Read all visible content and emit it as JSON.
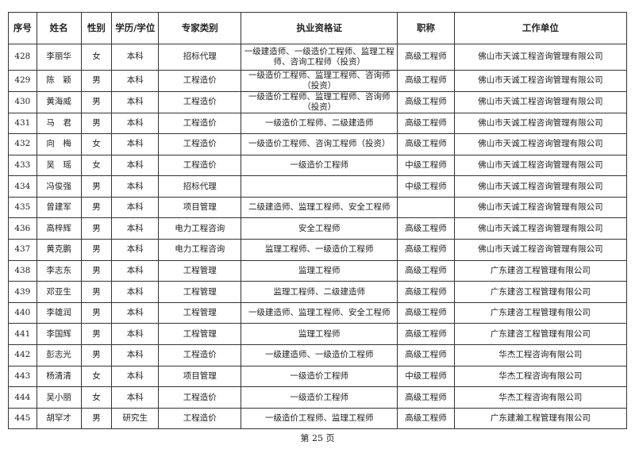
{
  "headers": [
    "序号",
    "姓名",
    "性别",
    "学历/学位",
    "专家类别",
    "执业资格证",
    "职称",
    "工作单位"
  ],
  "rows": [
    [
      "428",
      "李丽华",
      "女",
      "本科",
      "招标代理",
      "一级建造师、一级造价工程师、监理工程师、咨询工程师（投资）",
      "高级工程师",
      "佛山市天诚工程咨询管理有限公司"
    ],
    [
      "429",
      "陈　颖",
      "男",
      "本科",
      "工程造价",
      "一级造价工程师、监理工程师、咨询师（投资）",
      "高级工程师",
      "佛山市天诚工程咨询管理有限公司"
    ],
    [
      "430",
      "黄海威",
      "男",
      "本科",
      "工程造价",
      "一级造价工程师、监理工程师、咨询师（投资）",
      "高级工程师",
      "佛山市天诚工程咨询管理有限公司"
    ],
    [
      "431",
      "马　君",
      "男",
      "本科",
      "工程造价",
      "一级造价工程师、二级建造师",
      "高级工程师",
      "佛山市天诚工程咨询管理有限公司"
    ],
    [
      "432",
      "向　梅",
      "女",
      "本科",
      "工程造价",
      "一级造价工程师、咨询工程师（投资）",
      "高级工程师",
      "佛山市天诚工程咨询管理有限公司"
    ],
    [
      "433",
      "吴　瑶",
      "女",
      "本科",
      "工程造价",
      "一级造价工程师",
      "中级工程师",
      "佛山市天诚工程咨询管理有限公司"
    ],
    [
      "434",
      "冯俊强",
      "男",
      "本科",
      "招标代理",
      "",
      "中级工程师",
      "佛山市天诚工程咨询管理有限公司"
    ],
    [
      "435",
      "曾建军",
      "男",
      "本科",
      "项目管理",
      "二级建造师、监理工程师、安全工程师",
      "",
      "佛山市天诚工程咨询管理有限公司"
    ],
    [
      "436",
      "高梓辉",
      "男",
      "本科",
      "电力工程咨询",
      "安全工程师",
      "高级工程师",
      "佛山市天诚工程咨询管理有限公司"
    ],
    [
      "437",
      "黄克鹏",
      "男",
      "本科",
      "电力工程咨询",
      "监理工程师、一级造价工程师",
      "高级工程师",
      "佛山市天诚工程咨询管理有限公司"
    ],
    [
      "438",
      "李志东",
      "男",
      "本科",
      "工程管理",
      "监理工程师",
      "高级工程师",
      "广东建咨工程管理有限公司"
    ],
    [
      "439",
      "邓亚生",
      "男",
      "本科",
      "工程管理",
      "监理工程师、二级建造师",
      "高级工程师",
      "广东建咨工程管理有限公司"
    ],
    [
      "440",
      "李雄润",
      "男",
      "本科",
      "工程管理",
      "一级建造师、监理工程师、安全工程师",
      "高级工程师",
      "广东建咨工程管理有限公司"
    ],
    [
      "441",
      "李国辉",
      "男",
      "本科",
      "工程管理",
      "监理工程师",
      "高级工程师",
      "广东建咨工程管理有限公司"
    ],
    [
      "442",
      "彭志光",
      "男",
      "本科",
      "工程造价",
      "一级建造师、一级造价工程师",
      "高级工程师",
      "华杰工程咨询有限公司"
    ],
    [
      "443",
      "杨清清",
      "女",
      "本科",
      "项目管理",
      "一级造价工程师",
      "中级工程师",
      "华杰工程咨询有限公司"
    ],
    [
      "444",
      "吴小丽",
      "女",
      "本科",
      "工程造价",
      "一级造价工程师",
      "高级工程师",
      "华杰工程咨询有限公司"
    ],
    [
      "445",
      "胡罕才",
      "男",
      "研究生",
      "工程造价",
      "一级造价工程师、监理工程师",
      "高级工程师",
      "广东建瀚工程管理有限公司"
    ]
  ],
  "footer": "第 25 页"
}
